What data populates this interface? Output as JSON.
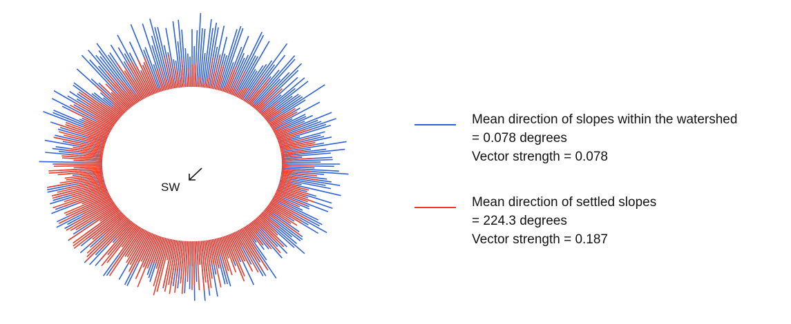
{
  "chart_data": {
    "type": "rose",
    "center_label": "SW",
    "bin_count": 360,
    "series": [
      {
        "name": "Mean direction of slopes within the watershed",
        "color": "#2b5fdc",
        "mean_direction_deg": 0.078,
        "vector_strength": 0.078,
        "legend_lines": [
          "Mean direction of slopes within the watershed",
          "= 0.078 degrees",
          "Vector strength = 0.078"
        ]
      },
      {
        "name": "Mean direction of settled slopes",
        "color": "#ee3a23",
        "mean_direction_deg": 224.3,
        "vector_strength": 0.187,
        "legend_lines": [
          "Mean direction of settled slopes",
          "= 224.3 degrees",
          "Vector strength = 0.187"
        ]
      }
    ]
  }
}
